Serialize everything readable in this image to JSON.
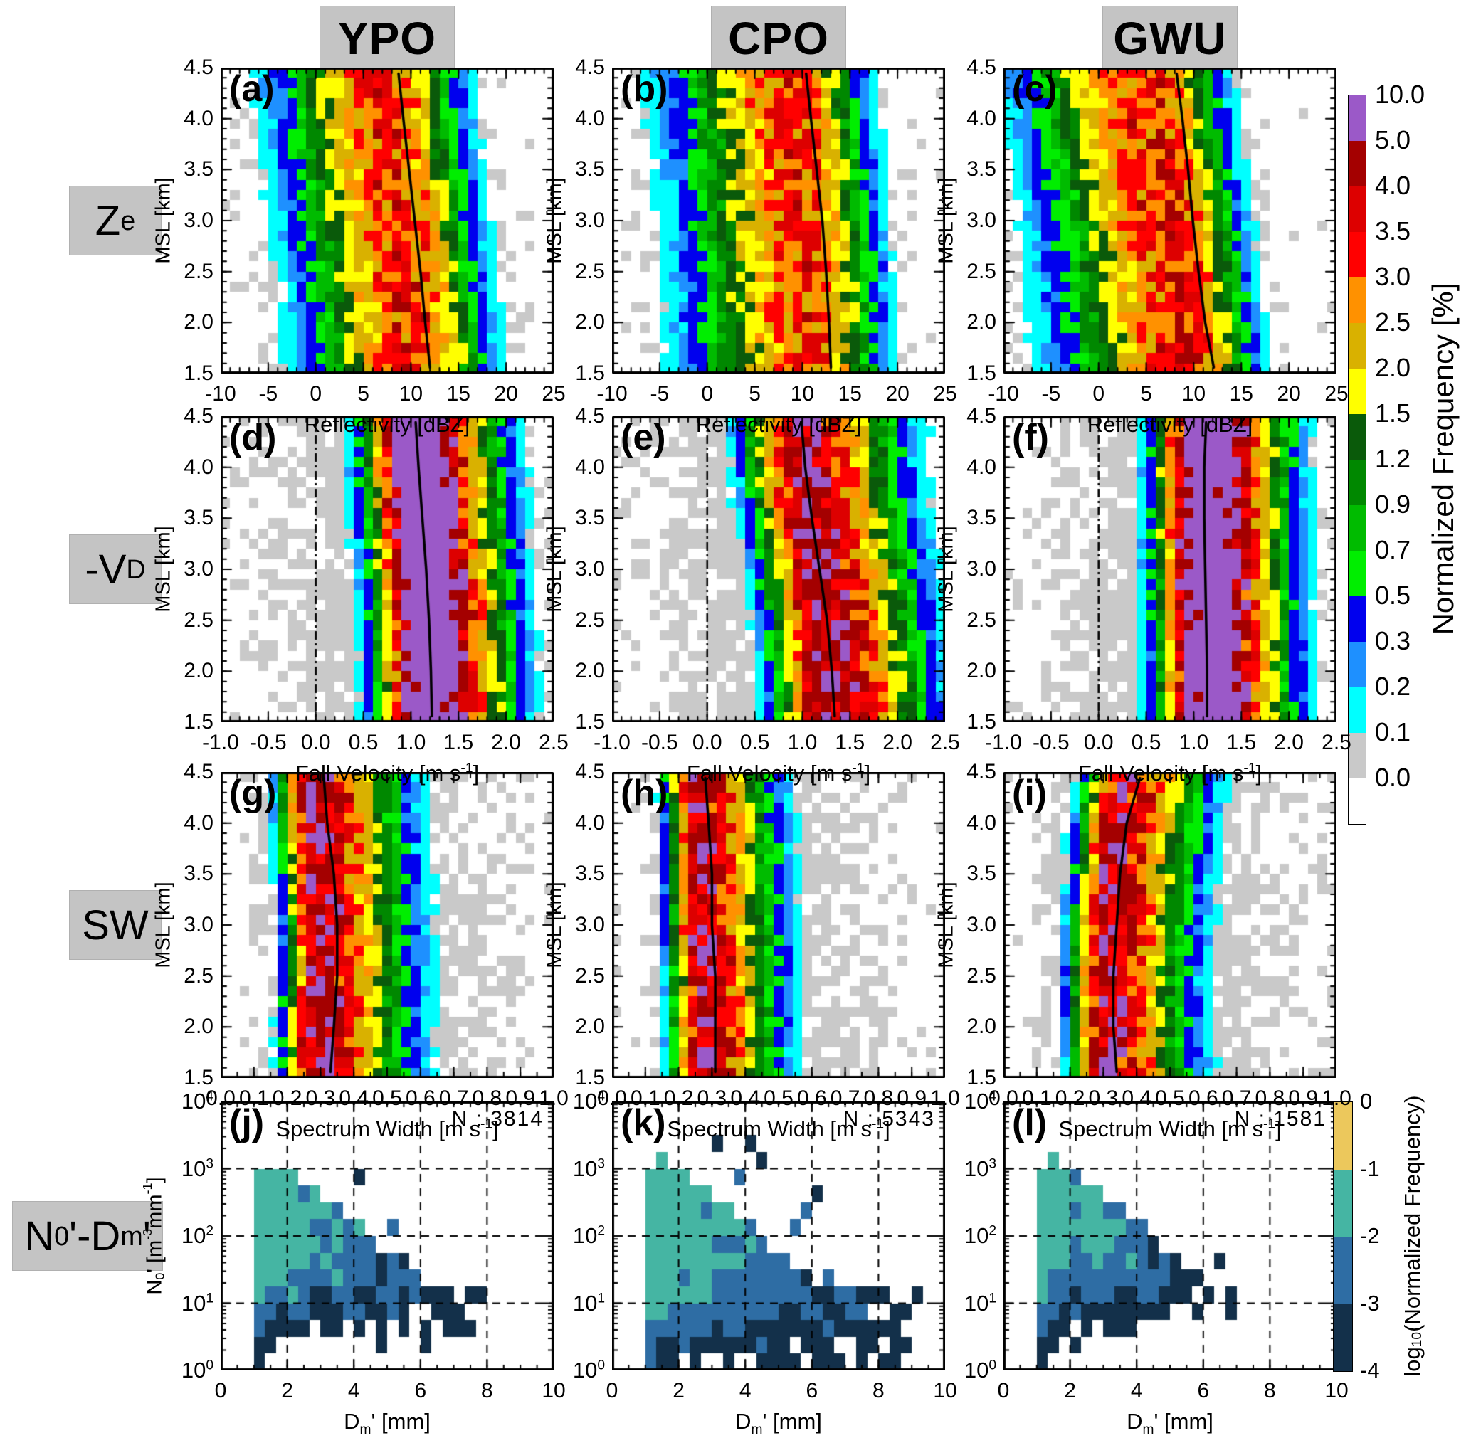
{
  "columns": [
    {
      "id": "ypo",
      "label": "YPO"
    },
    {
      "id": "cpo",
      "label": "CPO"
    },
    {
      "id": "gwu",
      "label": "GWU"
    }
  ],
  "rows": [
    {
      "id": "ze",
      "label_parts": [
        [
          "Z",
          0
        ],
        [
          "e",
          -1
        ]
      ]
    },
    {
      "id": "vd",
      "label_parts": [
        [
          "-V",
          0
        ],
        [
          "D",
          -1
        ]
      ]
    },
    {
      "id": "sw",
      "label_parts": [
        [
          "SW",
          0
        ]
      ]
    },
    {
      "id": "n0dm",
      "label_parts": [
        [
          "N",
          0
        ],
        [
          "0",
          -1
        ],
        [
          "'-D",
          0
        ],
        [
          "m",
          -1
        ],
        [
          "'",
          0
        ]
      ]
    }
  ],
  "axes": {
    "ze": {
      "title_parts": [
        [
          "Reflectivity [dBZ]",
          0
        ]
      ],
      "min": -10,
      "max": 25,
      "ticks": [
        -10,
        -5,
        0,
        5,
        10,
        15,
        20,
        25
      ],
      "tick_labels": [
        "-10",
        "-5",
        "0",
        "5",
        "10",
        "15",
        "20",
        "25"
      ],
      "minor_step": 1
    },
    "vd": {
      "title_parts": [
        [
          "Fall Velocity [m s",
          0
        ],
        [
          "-1",
          1
        ],
        [
          "]",
          0
        ]
      ],
      "min": -1.0,
      "max": 2.5,
      "ticks": [
        -1.0,
        -0.5,
        0.0,
        0.5,
        1.0,
        1.5,
        2.0,
        2.5
      ],
      "tick_labels": [
        "-1.0",
        "-0.5",
        "0.0",
        "0.5",
        "1.0",
        "1.5",
        "2.0",
        "2.5"
      ],
      "minor_step": 0.1
    },
    "sw": {
      "title_parts": [
        [
          "Spectrum Width [m s",
          0
        ],
        [
          "-1",
          1
        ],
        [
          "]",
          0
        ]
      ],
      "min": 0.0,
      "max": 1.0,
      "ticks": [
        0.0,
        0.1,
        0.2,
        0.3,
        0.4,
        0.5,
        0.6,
        0.7,
        0.8,
        0.9,
        1.0
      ],
      "tick_labels": [
        "0.0",
        "0.1",
        "0.2",
        "0.3",
        "0.4",
        "0.5",
        "0.6",
        "0.7",
        "0.8",
        "0.9",
        "1.0"
      ],
      "minor_step": 0.05
    },
    "dm": {
      "title_parts": [
        [
          "D",
          0
        ],
        [
          "m",
          -1
        ],
        [
          "' [mm]",
          0
        ]
      ],
      "min": 0,
      "max": 10,
      "ticks": [
        0,
        2,
        4,
        6,
        8,
        10
      ],
      "tick_labels": [
        "0",
        "2",
        "4",
        "6",
        "8",
        "10"
      ],
      "minor_step": 0.5
    },
    "msl": {
      "title_parts": [
        [
          "MSL [km]",
          0
        ]
      ],
      "min": 1.5,
      "max": 4.5,
      "ticks": [
        1.5,
        2.0,
        2.5,
        3.0,
        3.5,
        4.0,
        4.5
      ],
      "tick_labels": [
        "1.5",
        "2.0",
        "2.5",
        "3.0",
        "3.5",
        "4.0",
        "4.5"
      ],
      "minor_step": 0.1
    },
    "n0": {
      "title_parts": [
        [
          "N",
          0
        ],
        [
          "0",
          -1
        ],
        [
          "' [m",
          0
        ],
        [
          "-3",
          1
        ],
        [
          "mm",
          0
        ],
        [
          "-1",
          1
        ],
        [
          "]",
          0
        ]
      ],
      "log_min_exp": 0,
      "log_max_exp": 4,
      "tick_labels_parts": [
        [
          [
            "10",
            0
          ],
          [
            "0",
            1
          ]
        ],
        [
          [
            "10",
            0
          ],
          [
            "1",
            1
          ]
        ],
        [
          [
            "10",
            0
          ],
          [
            "2",
            1
          ]
        ],
        [
          [
            "10",
            0
          ],
          [
            "3",
            1
          ]
        ],
        [
          [
            "10",
            0
          ],
          [
            "4",
            1
          ]
        ]
      ]
    }
  },
  "colorbar_main": {
    "title": "Normalized Frequency [%]",
    "bounds": [
      0.0,
      0.1,
      0.2,
      0.3,
      0.5,
      0.7,
      0.9,
      1.2,
      1.5,
      2.0,
      2.5,
      3.0,
      3.5,
      4.0,
      5.0,
      10.0
    ],
    "tick_labels_top_to_bottom": [
      "10.0",
      "5.0",
      "4.0",
      "3.5",
      "3.0",
      "2.5",
      "2.0",
      "1.5",
      "1.2",
      "0.9",
      "0.7",
      "0.5",
      "0.3",
      "0.2",
      "0.1",
      "0.0"
    ],
    "cell_colors": [
      "#c9c9c9",
      "#00ffff",
      "#1e90ff",
      "#0000ee",
      "#00ee00",
      "#00bb00",
      "#008800",
      "#0a5a0a",
      "#ffff00",
      "#d9b100",
      "#ff9100",
      "#ff0000",
      "#dd0000",
      "#a40000",
      "#9b59c8"
    ],
    "below_color": "#ffffff"
  },
  "colorbar_log": {
    "title_parts": [
      [
        "log",
        0
      ],
      [
        "10",
        -1
      ],
      [
        "(Normalized Frequency)",
        0
      ]
    ],
    "tick_labels_top_to_bottom": [
      "0",
      "-1",
      "-2",
      "-3",
      "-4"
    ],
    "segment_colors_top_to_bottom": [
      "#ecc85c",
      "#45b5a3",
      "#2e6da4",
      "#13304a"
    ]
  },
  "chart_data": [
    {
      "id": "a",
      "letter": "(a)",
      "site": "YPO",
      "row": "Ze",
      "type": "cfad",
      "x_axis": "ze",
      "y_axis": "msl",
      "median": {
        "msl": [
          1.5,
          2.0,
          2.5,
          3.0,
          3.5,
          4.0,
          4.5
        ],
        "x": [
          12.0,
          11.5,
          11.0,
          10.4,
          9.8,
          9.2,
          8.7
        ]
      },
      "mode_x": [
        10.5,
        10.2,
        9.6,
        9.0,
        8.2,
        7.6,
        7.2
      ],
      "dist": {
        "peak": 3.4,
        "sl": 5.2,
        "sr": 3.6,
        "gl": 14,
        "gr": 9,
        "seed": 101
      }
    },
    {
      "id": "b",
      "letter": "(b)",
      "site": "CPO",
      "row": "Ze",
      "type": "cfad",
      "x_axis": "ze",
      "y_axis": "msl",
      "median": {
        "msl": [
          1.5,
          2.0,
          2.5,
          3.0,
          3.5,
          4.0,
          4.5
        ],
        "x": [
          13.0,
          12.8,
          12.5,
          12.1,
          11.5,
          10.9,
          10.4
        ]
      },
      "mode_x": [
        11.2,
        11.0,
        10.8,
        10.4,
        10.0,
        9.4,
        9.0
      ],
      "dist": {
        "peak": 3.2,
        "sl": 6.0,
        "sr": 3.4,
        "gl": 15,
        "gr": 8.5,
        "seed": 102
      }
    },
    {
      "id": "c",
      "letter": "(c)",
      "site": "GWU",
      "row": "Ze",
      "type": "cfad",
      "x_axis": "ze",
      "y_axis": "msl",
      "median": {
        "msl": [
          1.5,
          2.0,
          2.5,
          3.0,
          3.5,
          4.0,
          4.5
        ],
        "x": [
          12.1,
          11.2,
          10.5,
          9.9,
          9.4,
          8.8,
          8.2
        ]
      },
      "mode_x": [
        9.6,
        9.1,
        8.5,
        7.9,
        7.0,
        6.2,
        5.4
      ],
      "dist": {
        "peak": 3.6,
        "sl": 6.2,
        "sr": 3.2,
        "gl": 16,
        "gr": 8.5,
        "seed": 103
      }
    },
    {
      "id": "d",
      "letter": "(d)",
      "site": "YPO",
      "row": "-VD",
      "type": "cfad",
      "x_axis": "vd",
      "y_axis": "msl",
      "zero_line": true,
      "median": {
        "msl": [
          1.5,
          2.0,
          2.5,
          3.0,
          3.5,
          4.0,
          4.5
        ],
        "x": [
          1.22,
          1.21,
          1.19,
          1.16,
          1.12,
          1.08,
          1.05
        ]
      },
      "mode_x": [
        1.2,
        1.19,
        1.17,
        1.14,
        1.1,
        1.06,
        1.03
      ],
      "dist": {
        "peak": 7.2,
        "sl": 0.26,
        "sr": 0.4,
        "gl": 1.5,
        "gr": 1.1,
        "seed": 104
      }
    },
    {
      "id": "e",
      "letter": "(e)",
      "site": "CPO",
      "row": "-VD",
      "type": "cfad",
      "x_axis": "vd",
      "y_axis": "msl",
      "zero_line": true,
      "median": {
        "msl": [
          1.5,
          2.0,
          2.5,
          3.0,
          3.5,
          4.0,
          4.5
        ],
        "x": [
          1.34,
          1.31,
          1.26,
          1.18,
          1.1,
          1.03,
          0.99
        ]
      },
      "mode_x": [
        1.31,
        1.28,
        1.23,
        1.15,
        1.07,
        1.0,
        0.97
      ],
      "dist": {
        "peak": 4.8,
        "sl": 0.28,
        "sr": 0.48,
        "gl": 1.6,
        "gr": 1.0,
        "seed": 105
      }
    },
    {
      "id": "f",
      "letter": "(f)",
      "site": "GWU",
      "row": "-VD",
      "type": "cfad",
      "x_axis": "vd",
      "y_axis": "msl",
      "zero_line": true,
      "median": {
        "msl": [
          1.5,
          2.0,
          2.5,
          3.0,
          3.5,
          4.0,
          4.5
        ],
        "x": [
          1.14,
          1.14,
          1.13,
          1.12,
          1.11,
          1.11,
          1.13
        ]
      },
      "mode_x": [
        1.13,
        1.13,
        1.12,
        1.11,
        1.1,
        1.1,
        1.12
      ],
      "dist": {
        "peak": 7.4,
        "sl": 0.24,
        "sr": 0.4,
        "gl": 1.5,
        "gr": 1.1,
        "seed": 106
      }
    },
    {
      "id": "g",
      "letter": "(g)",
      "site": "YPO",
      "row": "SW",
      "type": "cfad",
      "x_axis": "sw",
      "y_axis": "msl",
      "median": {
        "msl": [
          1.5,
          2.0,
          2.5,
          3.0,
          3.5,
          4.0,
          4.5
        ],
        "x": [
          0.33,
          0.34,
          0.35,
          0.35,
          0.34,
          0.32,
          0.31
        ]
      },
      "mode_x": [
        0.28,
        0.28,
        0.29,
        0.29,
        0.28,
        0.27,
        0.27
      ],
      "dist": {
        "peak": 4.6,
        "sl": 0.045,
        "sr": 0.13,
        "gl": 0.16,
        "gr": 0.55,
        "seed": 107
      }
    },
    {
      "id": "h",
      "letter": "(h)",
      "site": "CPO",
      "row": "SW",
      "type": "cfad",
      "x_axis": "sw",
      "y_axis": "msl",
      "median": {
        "msl": [
          1.5,
          2.0,
          2.5,
          3.0,
          3.5,
          4.0,
          4.5
        ],
        "x": [
          0.31,
          0.31,
          0.31,
          0.3,
          0.3,
          0.29,
          0.28
        ]
      },
      "mode_x": [
        0.27,
        0.27,
        0.27,
        0.26,
        0.26,
        0.26,
        0.25
      ],
      "dist": {
        "peak": 4.4,
        "sl": 0.045,
        "sr": 0.11,
        "gl": 0.15,
        "gr": 0.5,
        "seed": 108
      }
    },
    {
      "id": "i",
      "letter": "(i)",
      "site": "GWU",
      "row": "SW",
      "type": "cfad",
      "x_axis": "sw",
      "y_axis": "msl",
      "median": {
        "msl": [
          1.5,
          2.0,
          2.5,
          3.0,
          3.5,
          4.0,
          4.5
        ],
        "x": [
          0.34,
          0.33,
          0.33,
          0.34,
          0.35,
          0.37,
          0.41
        ]
      },
      "mode_x": [
        0.31,
        0.3,
        0.3,
        0.31,
        0.32,
        0.33,
        0.36
      ],
      "dist": {
        "peak": 4.5,
        "sl": 0.05,
        "sr": 0.12,
        "gl": 0.18,
        "gr": 0.55,
        "seed": 109
      }
    },
    {
      "id": "j",
      "letter": "(j)",
      "site": "YPO",
      "row": "N0-Dm",
      "type": "hist2d_log",
      "x_axis": "dm",
      "y_axis": "n0",
      "n_label": "N : 3814",
      "n_value": 3814,
      "grid_x": [
        2,
        4,
        6,
        8
      ],
      "grid_y_exp": [
        1,
        2,
        3
      ],
      "dist": {
        "base": -1.05,
        "lin": 0.4,
        "quad": 0.012,
        "spread": 1.0,
        "dm_min": 1.0,
        "seed": 141
      }
    },
    {
      "id": "k",
      "letter": "(k)",
      "site": "CPO",
      "row": "N0-Dm",
      "type": "hist2d_log",
      "x_axis": "dm",
      "y_axis": "n0",
      "n_label": "N : 5343",
      "n_value": 5343,
      "grid_x": [
        2,
        4,
        6,
        8
      ],
      "grid_y_exp": [
        1,
        2,
        3
      ],
      "dist": {
        "base": -0.92,
        "lin": 0.32,
        "quad": 0.012,
        "spread": 1.15,
        "dm_min": 1.1,
        "seed": 142
      }
    },
    {
      "id": "l",
      "letter": "(l)",
      "site": "GWU",
      "row": "N0-Dm",
      "type": "hist2d_log",
      "x_axis": "dm",
      "y_axis": "n0",
      "n_label": "N : 1581",
      "n_value": 1581,
      "grid_x": [
        2,
        4,
        6,
        8
      ],
      "grid_y_exp": [
        1,
        2,
        3
      ],
      "dist": {
        "base": -1.0,
        "lin": 0.5,
        "quad": 0.015,
        "spread": 0.95,
        "dm_min": 1.05,
        "seed": 143
      }
    }
  ]
}
